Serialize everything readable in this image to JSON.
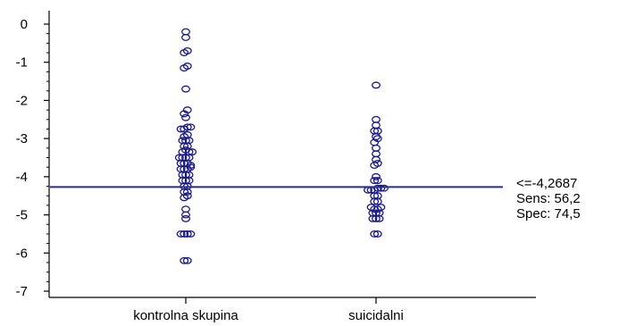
{
  "chart_data": {
    "type": "scatter",
    "subtype": "dot-plot",
    "categories": [
      "kontrolna skupina",
      "suicidalni"
    ],
    "ylim": [
      -7,
      0
    ],
    "yticks": [
      0,
      -1,
      -2,
      -3,
      -4,
      -5,
      -6,
      -7
    ],
    "ytick_labels": [
      "0",
      "-1",
      "-2",
      "-3",
      "-4",
      "-5",
      "-6",
      "-7"
    ],
    "grid": false,
    "marker": "open-circle",
    "marker_color": "#1a1a8c",
    "cutoff_line": {
      "value": -4.2687,
      "color": "#2b2b8c"
    },
    "annotation": [
      "<=-4,2687",
      "Sens: 56,2",
      "Spec: 74,5"
    ],
    "series": [
      {
        "category": "kontrolna skupina",
        "points": [
          [
            0,
            -0.2
          ],
          [
            0,
            -0.35
          ],
          [
            -0.3,
            -0.75
          ],
          [
            0.3,
            -0.7
          ],
          [
            -0.3,
            -1.15
          ],
          [
            0.3,
            -1.1
          ],
          [
            0,
            -1.7
          ],
          [
            0.3,
            -2.25
          ],
          [
            -0.3,
            -2.35
          ],
          [
            0,
            -2.45
          ],
          [
            -0.9,
            -2.75
          ],
          [
            -0.3,
            -2.75
          ],
          [
            0.3,
            -2.7
          ],
          [
            0.9,
            -2.7
          ],
          [
            -0.3,
            -2.95
          ],
          [
            0.3,
            -2.9
          ],
          [
            -0.6,
            -3.05
          ],
          [
            0,
            -3.05
          ],
          [
            0.6,
            -3.05
          ],
          [
            -0.3,
            -3.2
          ],
          [
            0.3,
            -3.2
          ],
          [
            -0.6,
            -3.35
          ],
          [
            0,
            -3.3
          ],
          [
            0.6,
            -3.35
          ],
          [
            1.2,
            -3.35
          ],
          [
            -1.2,
            -3.5
          ],
          [
            -0.6,
            -3.5
          ],
          [
            0,
            -3.5
          ],
          [
            0.6,
            -3.5
          ],
          [
            -0.9,
            -3.65
          ],
          [
            -0.3,
            -3.65
          ],
          [
            0.3,
            -3.65
          ],
          [
            0.9,
            -3.7
          ],
          [
            -0.9,
            -3.8
          ],
          [
            -0.3,
            -3.8
          ],
          [
            0.3,
            -3.8
          ],
          [
            0.9,
            -3.75
          ],
          [
            -0.6,
            -3.95
          ],
          [
            0,
            -3.95
          ],
          [
            0.6,
            -3.95
          ],
          [
            -0.6,
            -4.1
          ],
          [
            0,
            -4.1
          ],
          [
            0.6,
            -4.1
          ],
          [
            -0.3,
            -4.25
          ],
          [
            0.3,
            -4.25
          ],
          [
            -0.3,
            -4.4
          ],
          [
            0.3,
            -4.4
          ],
          [
            -0.3,
            -4.55
          ],
          [
            0.3,
            -4.5
          ],
          [
            0,
            -4.85
          ],
          [
            0,
            -5.0
          ],
          [
            0,
            -5.1
          ],
          [
            -0.9,
            -5.5
          ],
          [
            -0.3,
            -5.5
          ],
          [
            0.3,
            -5.5
          ],
          [
            0.9,
            -5.5
          ],
          [
            -0.3,
            -6.2
          ],
          [
            0.3,
            -6.2
          ]
        ]
      },
      {
        "category": "suicidalni",
        "points": [
          [
            0,
            -1.6
          ],
          [
            0,
            -2.5
          ],
          [
            0,
            -2.65
          ],
          [
            -0.3,
            -2.8
          ],
          [
            0.3,
            -2.8
          ],
          [
            0,
            -2.95
          ],
          [
            -0.3,
            -3.1
          ],
          [
            0.3,
            -3.0
          ],
          [
            0,
            -3.25
          ],
          [
            0,
            -3.4
          ],
          [
            0,
            -3.55
          ],
          [
            -0.3,
            -3.7
          ],
          [
            0.3,
            -3.65
          ],
          [
            0,
            -4.0
          ],
          [
            -0.3,
            -4.1
          ],
          [
            0.3,
            -4.1
          ],
          [
            -1.5,
            -4.35
          ],
          [
            -0.9,
            -4.35
          ],
          [
            -0.3,
            -4.35
          ],
          [
            0.3,
            -4.3
          ],
          [
            0.9,
            -4.3
          ],
          [
            1.5,
            -4.3
          ],
          [
            -0.3,
            -4.5
          ],
          [
            0.3,
            -4.5
          ],
          [
            -0.3,
            -4.65
          ],
          [
            0.3,
            -4.65
          ],
          [
            -0.9,
            -4.8
          ],
          [
            -0.3,
            -4.85
          ],
          [
            0.3,
            -4.85
          ],
          [
            0.9,
            -4.8
          ],
          [
            -0.6,
            -4.95
          ],
          [
            0,
            -4.95
          ],
          [
            0.6,
            -4.95
          ],
          [
            -0.6,
            -5.1
          ],
          [
            0,
            -5.1
          ],
          [
            0.6,
            -5.1
          ],
          [
            -0.3,
            -5.5
          ],
          [
            0.3,
            -5.5
          ]
        ]
      }
    ]
  }
}
